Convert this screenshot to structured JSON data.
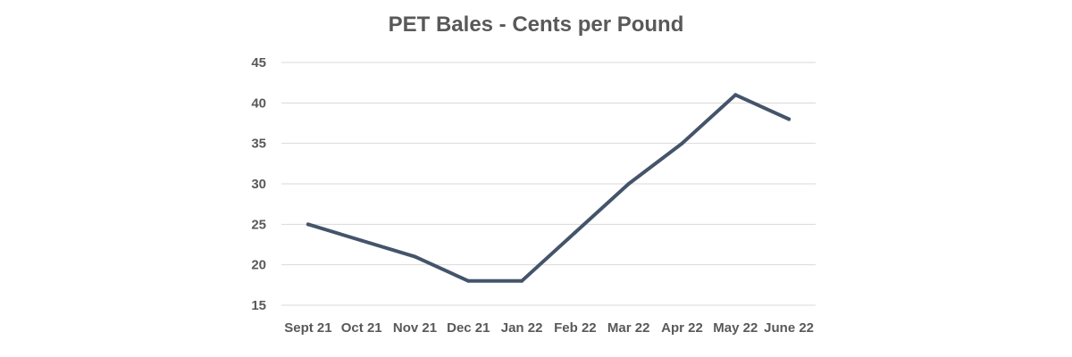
{
  "chart_data": {
    "type": "line",
    "title": "PET Bales - Cents per Pound",
    "xlabel": "",
    "ylabel": "",
    "categories": [
      "Sept 21",
      "Oct 21",
      "Nov 21",
      "Dec 21",
      "Jan 22",
      "Feb 22",
      "Mar 22",
      "Apr 22",
      "May 22",
      "June 22"
    ],
    "series": [
      {
        "values": [
          25,
          23,
          21,
          18,
          18,
          24,
          30,
          35,
          41,
          38
        ]
      }
    ],
    "ylim": [
      15,
      45
    ],
    "yticks": [
      15,
      20,
      25,
      30,
      35,
      40,
      45
    ],
    "grid": true,
    "legend": "none",
    "colors": {
      "line": "#44546A",
      "grid": "#D9D9D9",
      "text": "#595959"
    }
  }
}
